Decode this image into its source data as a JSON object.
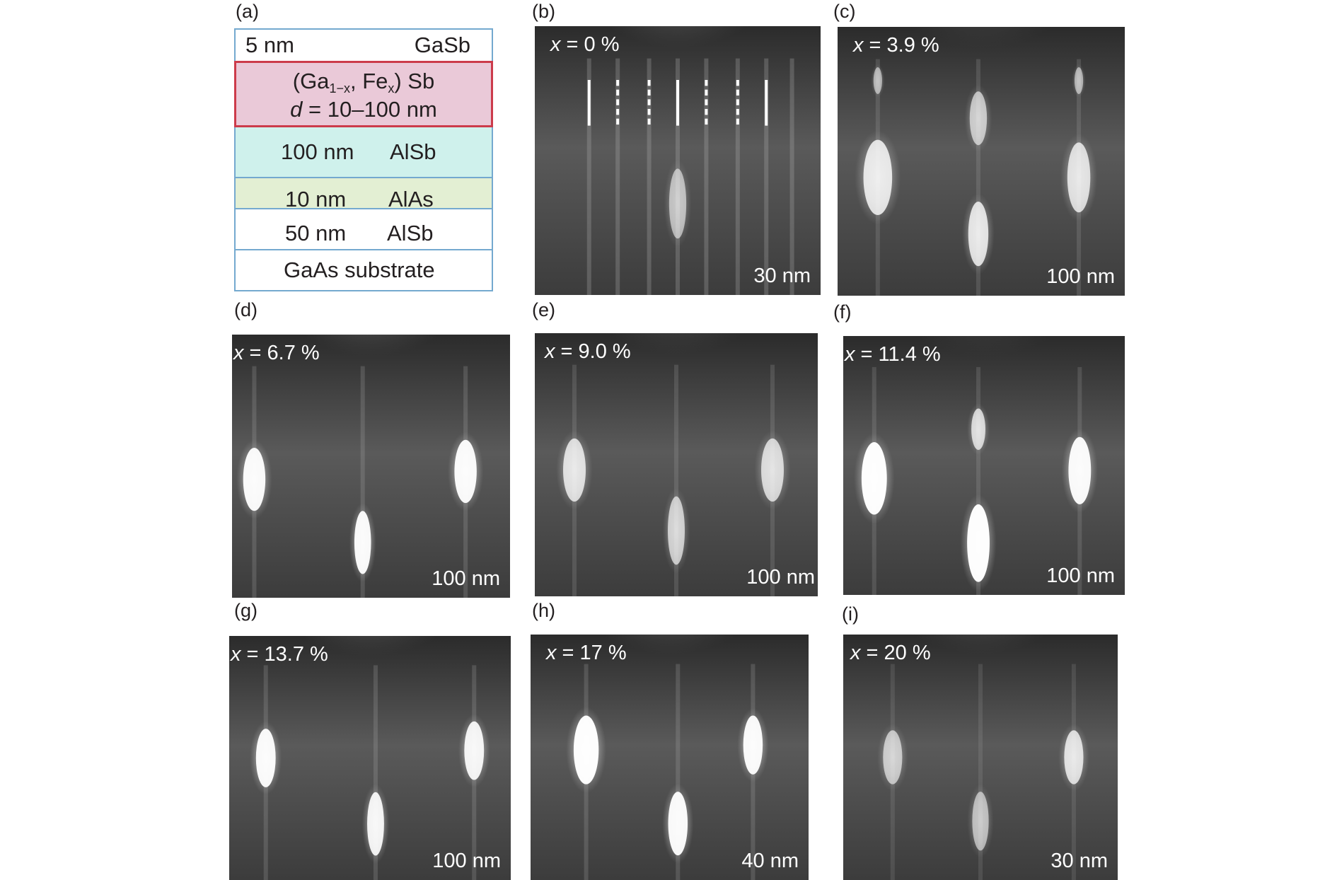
{
  "panel_labels": {
    "a": "(a)",
    "b": "(b)",
    "c": "(c)",
    "d": "(d)",
    "e": "(e)",
    "f": "(f)",
    "g": "(g)",
    "h": "(h)",
    "i": "(i)"
  },
  "stack": {
    "cap": {
      "thickness": "5 nm",
      "material": "GaSb"
    },
    "fe_layer": {
      "open": "(Ga",
      "sub1": "1−x",
      "mid": ", Fe",
      "sub2": "x",
      "close": ") Sb",
      "d_var": "d",
      "d_text": " = 10–100 nm"
    },
    "alsb_thick": {
      "thickness": "100 nm",
      "material": "AlSb"
    },
    "alas": {
      "thickness": "10 nm",
      "material": "AlAs"
    },
    "alsb_thin": {
      "thickness": "50 nm",
      "material": "AlSb"
    },
    "substrate": {
      "label": "GaAs substrate"
    }
  },
  "rheed_panels": {
    "b": {
      "var": "x",
      "value": " = 0 %",
      "thickness": "30 nm"
    },
    "c": {
      "var": "x",
      "value": " = 3.9 %",
      "thickness": "100 nm"
    },
    "d": {
      "var": "x",
      "value": " = 6.7 %",
      "thickness": "100 nm"
    },
    "e": {
      "var": "x",
      "value": " = 9.0 %",
      "thickness": "100 nm"
    },
    "f": {
      "var": "x",
      "value": " = 11.4 %",
      "thickness": "100 nm"
    },
    "g": {
      "var": "x",
      "value": " = 13.7 %",
      "thickness": "100 nm"
    },
    "h": {
      "var": "x",
      "value": " = 17 %",
      "thickness": "40 nm"
    },
    "i": {
      "var": "x",
      "value": " = 20 %",
      "thickness": "30 nm"
    }
  },
  "colors": {
    "stack_border": "#74a9cf",
    "fe_layer_fill": "#eac9d8",
    "fe_layer_border": "#cc3b4b",
    "alsb_fill": "#cff1ec",
    "alas_fill": "#e3efd3"
  }
}
